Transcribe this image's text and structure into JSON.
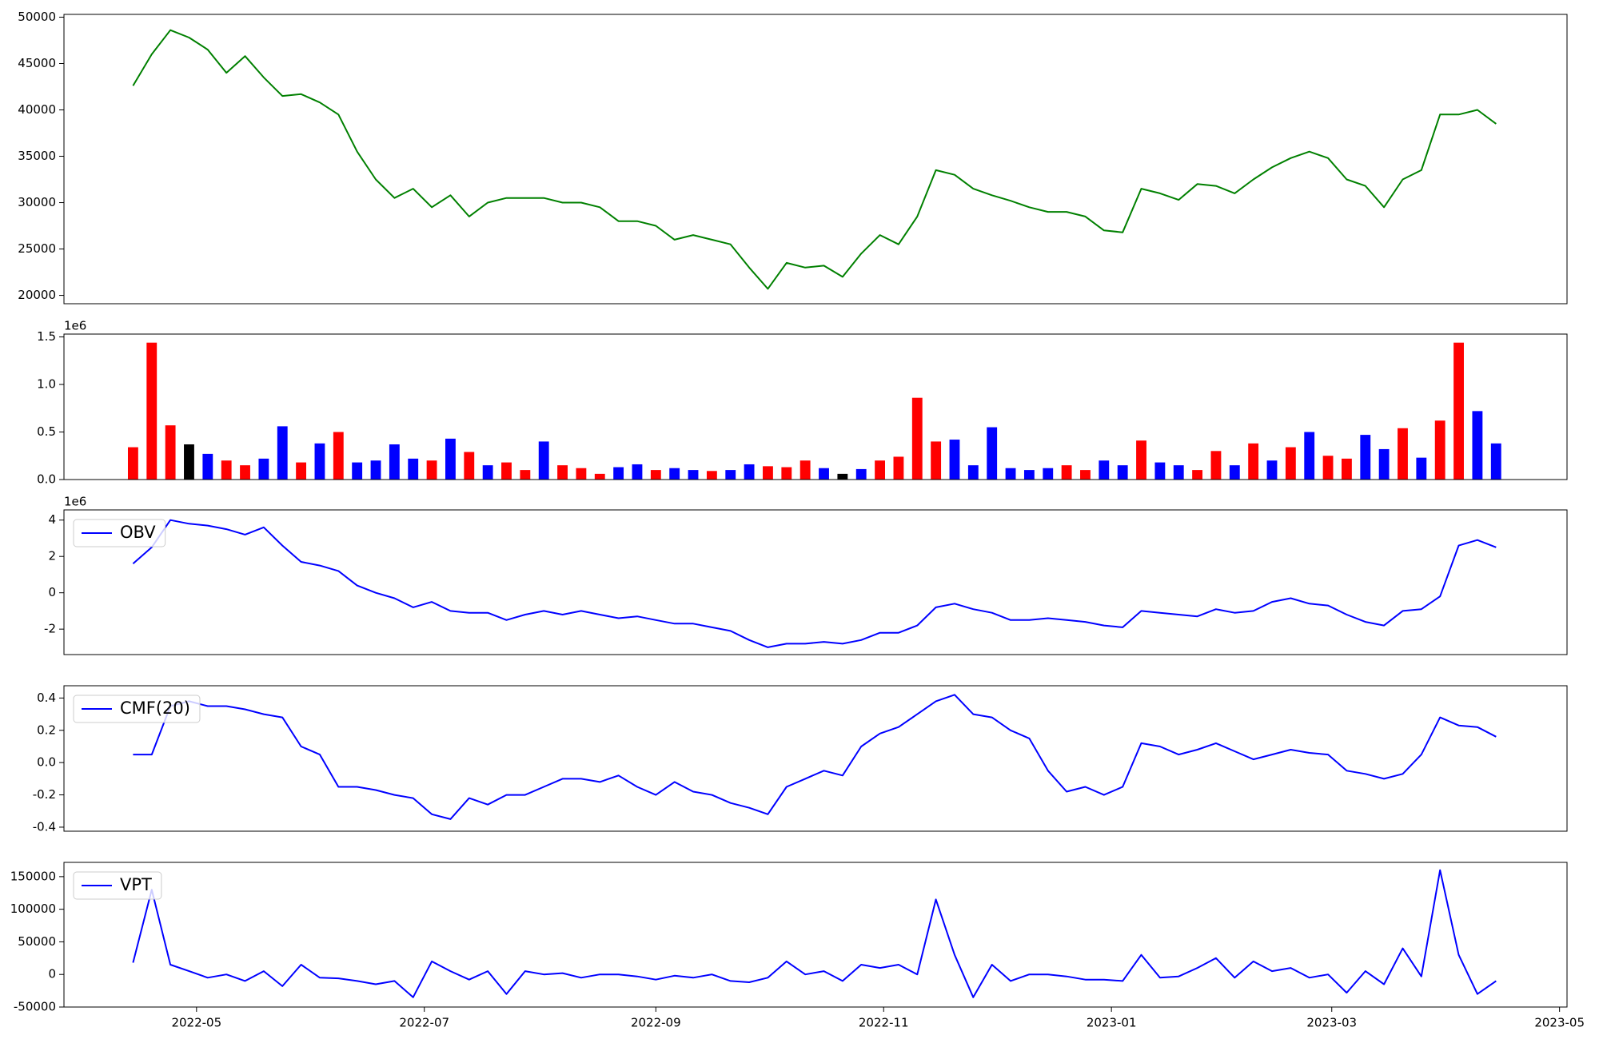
{
  "chart_data": [
    {
      "type": "line",
      "xlim": [
        -5.5,
        397
      ],
      "ylim": [
        19100,
        50300
      ],
      "yticks": [
        20000,
        25000,
        30000,
        35000,
        40000,
        45000,
        50000
      ],
      "legend": false,
      "x": [
        13,
        18,
        23,
        28,
        33,
        38,
        43,
        48,
        53,
        58,
        63,
        68,
        73,
        78,
        83,
        88,
        93,
        98,
        103,
        108,
        113,
        118,
        123,
        128,
        133,
        138,
        143,
        148,
        153,
        158,
        163,
        168,
        173,
        178,
        183,
        188,
        193,
        198,
        203,
        208,
        213,
        218,
        223,
        228,
        233,
        238,
        243,
        248,
        253,
        258,
        263,
        268,
        273,
        278,
        283,
        288,
        293,
        298,
        303,
        308,
        313,
        318,
        323,
        328,
        333,
        338,
        343,
        348,
        353,
        358,
        363,
        368,
        373,
        378
      ],
      "series": [
        {
          "color": "green",
          "values": [
            42600,
            46000,
            48600,
            47800,
            46500,
            44000,
            45800,
            43500,
            41500,
            41700,
            40800,
            39500,
            35500,
            32500,
            30500,
            31500,
            29500,
            30800,
            28500,
            30000,
            30500,
            30500,
            30500,
            30000,
            30000,
            29500,
            28000,
            28000,
            27500,
            26000,
            26500,
            26000,
            25500,
            23000,
            20700,
            23500,
            23000,
            23200,
            22000,
            24500,
            26500,
            25500,
            28500,
            33500,
            33000,
            31500,
            30800,
            30200,
            29500,
            29000,
            29000,
            28500,
            27000,
            26800,
            31500,
            31000,
            30300,
            32000,
            31800,
            31000,
            32500,
            33800,
            34800,
            35500,
            34800,
            32500,
            31800,
            29500,
            32500,
            33500,
            39500,
            39500,
            40000,
            38500
          ]
        }
      ]
    },
    {
      "type": "bar",
      "xlim": [
        -5.5,
        397
      ],
      "ylim": [
        0,
        1530000
      ],
      "offset_label": "1e6",
      "legend": false,
      "yticks": [
        {
          "value": 0,
          "label": "0.0"
        },
        {
          "value": 500000,
          "label": "0.5"
        },
        {
          "value": 1000000,
          "label": "1.0"
        },
        {
          "value": 1500000,
          "label": "1.5"
        }
      ],
      "x": [
        13,
        18,
        23,
        28,
        33,
        38,
        43,
        48,
        53,
        58,
        63,
        68,
        73,
        78,
        83,
        88,
        93,
        98,
        103,
        108,
        113,
        118,
        123,
        128,
        133,
        138,
        143,
        148,
        153,
        158,
        163,
        168,
        173,
        178,
        183,
        188,
        193,
        198,
        203,
        208,
        213,
        218,
        223,
        228,
        233,
        238,
        243,
        248,
        253,
        258,
        263,
        268,
        273,
        278,
        283,
        288,
        293,
        298,
        303,
        308,
        313,
        318,
        323,
        328,
        333,
        338,
        343,
        348,
        353,
        358,
        363,
        368,
        373,
        378
      ],
      "series": [
        {
          "values": [
            340000,
            1440000,
            570000,
            370000,
            270000,
            200000,
            150000,
            220000,
            560000,
            180000,
            380000,
            500000,
            180000,
            200000,
            370000,
            220000,
            200000,
            430000,
            290000,
            150000,
            180000,
            100000,
            400000,
            150000,
            120000,
            60000,
            130000,
            160000,
            100000,
            120000,
            100000,
            90000,
            100000,
            160000,
            140000,
            130000,
            200000,
            120000,
            60000,
            110000,
            200000,
            240000,
            860000,
            400000,
            420000,
            150000,
            550000,
            120000,
            100000,
            120000,
            150000,
            100000,
            200000,
            150000,
            410000,
            180000,
            150000,
            100000,
            300000,
            150000,
            380000,
            200000,
            340000,
            500000,
            250000,
            220000,
            470000,
            320000,
            540000,
            230000,
            620000,
            1440000,
            720000,
            380000
          ],
          "colors": [
            "red",
            "red",
            "red",
            "black",
            "blue",
            "red",
            "red",
            "blue",
            "blue",
            "red",
            "blue",
            "red",
            "blue",
            "blue",
            "blue",
            "blue",
            "red",
            "blue",
            "red",
            "blue",
            "red",
            "red",
            "blue",
            "red",
            "red",
            "red",
            "blue",
            "blue",
            "red",
            "blue",
            "blue",
            "red",
            "blue",
            "blue",
            "red",
            "red",
            "red",
            "blue",
            "black",
            "blue",
            "red",
            "red",
            "red",
            "red",
            "blue",
            "blue",
            "blue",
            "blue",
            "blue",
            "blue",
            "red",
            "red",
            "blue",
            "blue",
            "red",
            "blue",
            "blue",
            "red",
            "red",
            "blue",
            "red",
            "blue",
            "red",
            "blue",
            "red",
            "red",
            "blue",
            "blue",
            "red",
            "blue",
            "red",
            "red",
            "blue",
            "blue"
          ]
        }
      ]
    },
    {
      "type": "line",
      "xlim": [
        -5.5,
        397
      ],
      "ylim": [
        -3400000,
        4560000
      ],
      "offset_label": "1e6",
      "legend": true,
      "yticks": [
        {
          "value": -2000000,
          "label": "-2"
        },
        {
          "value": 0,
          "label": "0"
        },
        {
          "value": 2000000,
          "label": "2"
        },
        {
          "value": 4000000,
          "label": "4"
        }
      ],
      "x": [
        13,
        18,
        23,
        28,
        33,
        38,
        43,
        48,
        53,
        58,
        63,
        68,
        73,
        78,
        83,
        88,
        93,
        98,
        103,
        108,
        113,
        118,
        123,
        128,
        133,
        138,
        143,
        148,
        153,
        158,
        163,
        168,
        173,
        178,
        183,
        188,
        193,
        198,
        203,
        208,
        213,
        218,
        223,
        228,
        233,
        238,
        243,
        248,
        253,
        258,
        263,
        268,
        273,
        278,
        283,
        288,
        293,
        298,
        303,
        308,
        313,
        318,
        323,
        328,
        333,
        338,
        343,
        348,
        353,
        358,
        363,
        368,
        373,
        378
      ],
      "series": [
        {
          "name": "OBV",
          "color": "blue",
          "values": [
            1600000,
            2500000,
            4000000,
            3800000,
            3700000,
            3500000,
            3200000,
            3600000,
            2600000,
            1700000,
            1500000,
            1200000,
            400000,
            0,
            -300000,
            -800000,
            -500000,
            -1000000,
            -1100000,
            -1100000,
            -1500000,
            -1200000,
            -1000000,
            -1200000,
            -1000000,
            -1200000,
            -1400000,
            -1300000,
            -1500000,
            -1700000,
            -1700000,
            -1900000,
            -2100000,
            -2600000,
            -3000000,
            -2800000,
            -2800000,
            -2700000,
            -2800000,
            -2600000,
            -2200000,
            -2200000,
            -1800000,
            -800000,
            -600000,
            -900000,
            -1100000,
            -1500000,
            -1500000,
            -1400000,
            -1500000,
            -1600000,
            -1800000,
            -1900000,
            -1000000,
            -1100000,
            -1200000,
            -1300000,
            -900000,
            -1100000,
            -1000000,
            -500000,
            -300000,
            -600000,
            -700000,
            -1200000,
            -1600000,
            -1800000,
            -1000000,
            -900000,
            -200000,
            2600000,
            2900000,
            2500000
          ]
        }
      ]
    },
    {
      "type": "line",
      "xlim": [
        -5.5,
        397
      ],
      "ylim": [
        -0.425,
        0.476
      ],
      "legend": true,
      "yticks": [
        -0.4,
        -0.2,
        {
          "value": 0,
          "label": "0.0"
        },
        0.2,
        0.4
      ],
      "x": [
        13,
        18,
        23,
        28,
        33,
        38,
        43,
        48,
        53,
        58,
        63,
        68,
        73,
        78,
        83,
        88,
        93,
        98,
        103,
        108,
        113,
        118,
        123,
        128,
        133,
        138,
        143,
        148,
        153,
        158,
        163,
        168,
        173,
        178,
        183,
        188,
        193,
        198,
        203,
        208,
        213,
        218,
        223,
        228,
        233,
        238,
        243,
        248,
        253,
        258,
        263,
        268,
        273,
        278,
        283,
        288,
        293,
        298,
        303,
        308,
        313,
        318,
        323,
        328,
        333,
        338,
        343,
        348,
        353,
        358,
        363,
        368,
        373,
        378
      ],
      "series": [
        {
          "name": "CMF(20)",
          "color": "blue",
          "values": [
            0.05,
            0.05,
            0.35,
            0.38,
            0.35,
            0.35,
            0.33,
            0.3,
            0.28,
            0.1,
            0.05,
            -0.15,
            -0.15,
            -0.17,
            -0.2,
            -0.22,
            -0.32,
            -0.35,
            -0.22,
            -0.26,
            -0.2,
            -0.2,
            -0.15,
            -0.1,
            -0.1,
            -0.12,
            -0.08,
            -0.15,
            -0.2,
            -0.12,
            -0.18,
            -0.2,
            -0.25,
            -0.28,
            -0.32,
            -0.15,
            -0.1,
            -0.05,
            -0.08,
            0.1,
            0.18,
            0.22,
            0.3,
            0.38,
            0.42,
            0.3,
            0.28,
            0.2,
            0.15,
            -0.05,
            -0.18,
            -0.15,
            -0.2,
            -0.15,
            0.12,
            0.1,
            0.05,
            0.08,
            0.12,
            0.07,
            0.02,
            0.05,
            0.08,
            0.06,
            0.05,
            -0.05,
            -0.07,
            -0.1,
            -0.07,
            0.05,
            0.28,
            0.23,
            0.22,
            0.16
          ]
        }
      ]
    },
    {
      "type": "line",
      "xlim": [
        -5.5,
        397
      ],
      "ylim": [
        -50000,
        171900
      ],
      "legend": true,
      "yticks": [
        -50000,
        0,
        50000,
        100000,
        150000
      ],
      "xticks": [
        {
          "value": 30,
          "label": "2022-05"
        },
        {
          "value": 91,
          "label": "2022-07"
        },
        {
          "value": 153,
          "label": "2022-09"
        },
        {
          "value": 214,
          "label": "2022-11"
        },
        {
          "value": 275,
          "label": "2023-01"
        },
        {
          "value": 334,
          "label": "2023-03"
        },
        {
          "value": 395,
          "label": "2023-05"
        }
      ],
      "x": [
        13,
        18,
        23,
        28,
        33,
        38,
        43,
        48,
        53,
        58,
        63,
        68,
        73,
        78,
        83,
        88,
        93,
        98,
        103,
        108,
        113,
        118,
        123,
        128,
        133,
        138,
        143,
        148,
        153,
        158,
        163,
        168,
        173,
        178,
        183,
        188,
        193,
        198,
        203,
        208,
        213,
        218,
        223,
        228,
        233,
        238,
        243,
        248,
        253,
        258,
        263,
        268,
        273,
        278,
        283,
        288,
        293,
        298,
        303,
        308,
        313,
        318,
        323,
        328,
        333,
        338,
        343,
        348,
        353,
        358,
        363,
        368,
        373,
        378
      ],
      "series": [
        {
          "name": "VPT",
          "color": "blue",
          "values": [
            18000,
            130000,
            15000,
            5000,
            -5000,
            0,
            -10000,
            5000,
            -18000,
            15000,
            -5000,
            -6000,
            -10000,
            -15000,
            -10000,
            -35000,
            20000,
            5000,
            -8000,
            5000,
            -30000,
            5000,
            0,
            2000,
            -5000,
            0,
            0,
            -3000,
            -8000,
            -2000,
            -5000,
            0,
            -10000,
            -12000,
            -5000,
            20000,
            0,
            5000,
            -10000,
            15000,
            10000,
            15000,
            0,
            115000,
            30000,
            -35000,
            15000,
            -10000,
            0,
            0,
            -3000,
            -8000,
            -8000,
            -10000,
            30000,
            -5000,
            -3000,
            10000,
            25000,
            -5000,
            20000,
            5000,
            10000,
            -5000,
            0,
            -28000,
            5000,
            -15000,
            40000,
            -3000,
            160000,
            30000,
            -30000,
            -10000
          ]
        }
      ]
    }
  ]
}
